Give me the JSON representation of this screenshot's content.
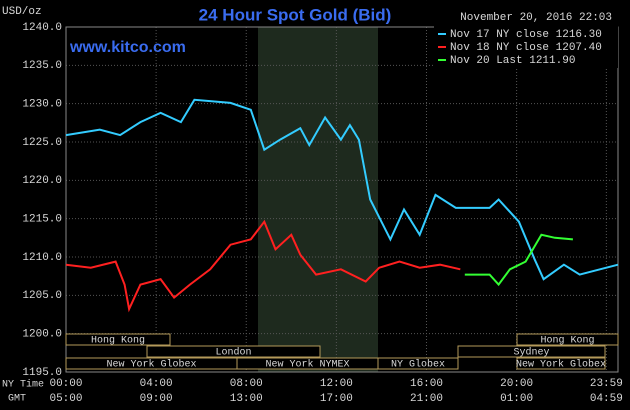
{
  "chart_data": {
    "type": "line",
    "title": "24 Hour Spot Gold (Bid)",
    "subtitle": "www.kitco.com",
    "date": "November 20, 2016 22:03",
    "y_label": "USD/oz",
    "x_label": "NY Time",
    "x2_label": "GMT",
    "grid": true,
    "background": "#000000",
    "ylim": [
      1195,
      1240
    ],
    "yticks": [
      {
        "value": 1195,
        "label": "1195.0"
      },
      {
        "value": 1200,
        "label": "1200.0"
      },
      {
        "value": 1205,
        "label": "1205.0"
      },
      {
        "value": 1210,
        "label": "1210.0"
      },
      {
        "value": 1215,
        "label": "1215.0"
      },
      {
        "value": 1220,
        "label": "1220.0"
      },
      {
        "value": 1225,
        "label": "1225.0"
      },
      {
        "value": 1230,
        "label": "1230.0"
      },
      {
        "value": 1235,
        "label": "1235.0"
      },
      {
        "value": 1240,
        "label": "1240.0"
      }
    ],
    "xlim": [
      0,
      24.5
    ],
    "xticks": [
      {
        "value": 0,
        "label": "00:00"
      },
      {
        "value": 4,
        "label": "04:00"
      },
      {
        "value": 8,
        "label": "08:00"
      },
      {
        "value": 12,
        "label": "12:00"
      },
      {
        "value": 16,
        "label": "16:00"
      },
      {
        "value": 20,
        "label": "20:00"
      },
      {
        "value": 23.983,
        "label": "23:59"
      }
    ],
    "x2ticks": [
      {
        "value": 0,
        "label": "05:00"
      },
      {
        "value": 4,
        "label": "09:00"
      },
      {
        "value": 8,
        "label": "13:00"
      },
      {
        "value": 12,
        "label": "17:00"
      },
      {
        "value": 16,
        "label": "21:00"
      },
      {
        "value": 20,
        "label": "01:00"
      },
      {
        "value": 23.983,
        "label": "04:59"
      }
    ],
    "sessions": [
      "Hong Kong",
      "London",
      "New York Globex",
      "New York NYMEX",
      "NY Globex",
      "Hong Kong",
      "Sydney",
      "New York Globex"
    ],
    "series": [
      {
        "name": "Nov 17 NY close 1216.30",
        "color": "#33ccff",
        "x": [
          0,
          1.5,
          2.4,
          3.3,
          4.2,
          5.1,
          5.7,
          7.3,
          8.2,
          8.8,
          9.5,
          10.4,
          10.8,
          11.5,
          12.2,
          12.6,
          13.0,
          13.5,
          14.4,
          15.0,
          15.7,
          16.4,
          17.3,
          18.8,
          19.2,
          20.1,
          20.8,
          21.2,
          22.1,
          22.8,
          23.7,
          24.5
        ],
        "values": [
          1225.9,
          1226.6,
          1225.9,
          1227.6,
          1228.8,
          1227.6,
          1230.5,
          1230.1,
          1229.2,
          1224.0,
          1225.3,
          1226.8,
          1224.6,
          1228.2,
          1225.3,
          1227.2,
          1225.3,
          1217.5,
          1212.3,
          1216.2,
          1212.9,
          1218.1,
          1216.4,
          1216.4,
          1217.5,
          1214.6,
          1209.7,
          1207.1,
          1209.0,
          1207.7,
          1208.4,
          1209.0
        ]
      },
      {
        "name": "Nov 18 NY close 1207.40",
        "color": "#ff2020",
        "x": [
          0,
          1.1,
          2.2,
          2.6,
          2.8,
          3.3,
          4.2,
          4.8,
          5.5,
          6.4,
          7.3,
          8.2,
          8.8,
          9.3,
          10.0,
          10.4,
          11.1,
          12.2,
          13.3,
          13.9,
          14.8,
          15.7,
          16.6,
          17.5
        ],
        "values": [
          1209.0,
          1208.6,
          1209.4,
          1206.4,
          1203.2,
          1206.4,
          1207.1,
          1204.7,
          1206.4,
          1208.4,
          1211.6,
          1212.3,
          1214.6,
          1211.0,
          1212.9,
          1210.3,
          1207.7,
          1208.4,
          1206.8,
          1208.6,
          1209.4,
          1208.6,
          1209.0,
          1208.4
        ]
      },
      {
        "name": "Nov 20 Last 1211.90",
        "color": "#33ff33",
        "x": [
          17.7,
          18.8,
          19.2,
          19.7,
          20.4,
          21.1,
          21.7,
          22.5
        ],
        "values": [
          1207.7,
          1207.7,
          1206.4,
          1208.4,
          1209.4,
          1212.9,
          1212.5,
          1212.3
        ]
      }
    ]
  }
}
